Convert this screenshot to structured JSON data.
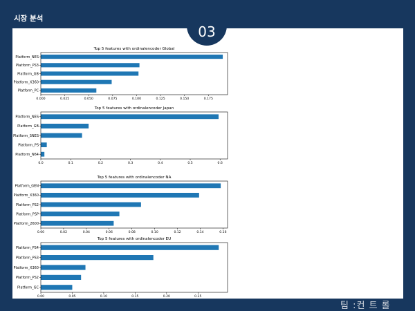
{
  "header": {
    "title": "시장 분석"
  },
  "slide": {
    "number": "03"
  },
  "footer": {
    "team": "팀 :컨 트 롤"
  },
  "colors": {
    "bar": "#1f77b4",
    "background": "#17375e",
    "panel": "#ffffff"
  },
  "chart_data": [
    {
      "type": "bar",
      "orientation": "horizontal",
      "title": "Top 5 features with ordinalencoder Global",
      "categories": [
        "Platform_NES",
        "Platform_PS3",
        "Platform_GB",
        "Platform_X360",
        "Platform_PC"
      ],
      "values": [
        0.19,
        0.103,
        0.102,
        0.074,
        0.058
      ],
      "xlim": [
        0,
        0.195
      ],
      "ticks": [
        0,
        0.025,
        0.05,
        0.075,
        0.1,
        0.125,
        0.15,
        0.175
      ],
      "tick_labels": [
        "0.000",
        "0.025",
        "0.050",
        "0.075",
        "0.100",
        "0.125",
        "0.150",
        "0.175"
      ]
    },
    {
      "type": "bar",
      "orientation": "horizontal",
      "title": "Top 5 features with ordinalencoder Japan",
      "categories": [
        "Platform_NES",
        "Platform_GB",
        "Platform_SNES",
        "Platform_PS",
        "Platform_N64"
      ],
      "values": [
        0.595,
        0.16,
        0.138,
        0.02,
        0.012
      ],
      "xlim": [
        0,
        0.625
      ],
      "ticks": [
        0,
        0.1,
        0.2,
        0.3,
        0.4,
        0.5,
        0.6
      ],
      "tick_labels": [
        "0.0",
        "0.1",
        "0.2",
        "0.3",
        "0.4",
        "0.5",
        "0.6"
      ]
    },
    {
      "type": "bar",
      "orientation": "horizontal",
      "title": "Top 5 features with ordinalencoder NA",
      "categories": [
        "Platform_GEN",
        "Platform_X360",
        "Platform_PS2",
        "Platform_PSP",
        "Platform_2600"
      ],
      "values": [
        0.158,
        0.139,
        0.088,
        0.069,
        0.064
      ],
      "xlim": [
        0,
        0.164
      ],
      "ticks": [
        0,
        0.02,
        0.04,
        0.06,
        0.08,
        0.1,
        0.12,
        0.14,
        0.16
      ],
      "tick_labels": [
        "0.00",
        "0.02",
        "0.04",
        "0.06",
        "0.08",
        "0.10",
        "0.12",
        "0.14",
        "0.16"
      ]
    },
    {
      "type": "bar",
      "orientation": "horizontal",
      "title": "Top 5 features with ordinalencoder EU",
      "categories": [
        "Platform_PS4",
        "Platform_PS3",
        "Platform_X360",
        "Platform_PS2",
        "Platform_GC"
      ],
      "values": [
        0.283,
        0.179,
        0.071,
        0.064,
        0.05
      ],
      "xlim": [
        0,
        0.297
      ],
      "ticks": [
        0,
        0.05,
        0.1,
        0.15,
        0.2,
        0.25
      ],
      "tick_labels": [
        "0.00",
        "0.05",
        "0.10",
        "0.15",
        "0.20",
        "0.25"
      ]
    }
  ]
}
